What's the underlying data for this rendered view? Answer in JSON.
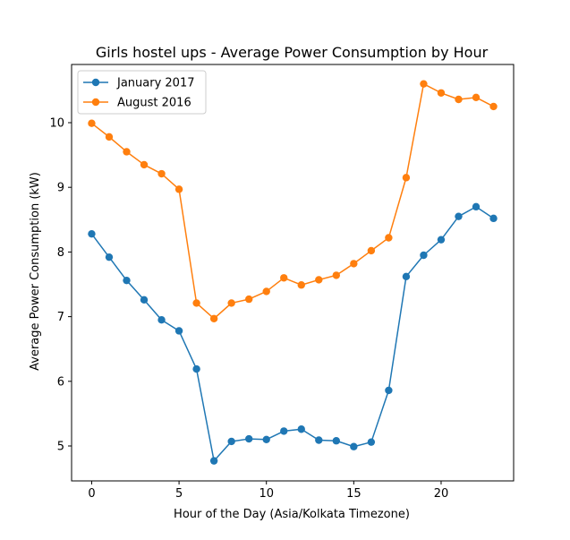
{
  "chart_data": {
    "type": "line",
    "title": "Girls hostel ups - Average Power Consumption by Hour",
    "xlabel": "Hour of the Day (Asia/Kolkata Timezone)",
    "ylabel": "Average Power Consumption (kW)",
    "xlim": [
      -1.15,
      24.15
    ],
    "ylim": [
      4.46,
      10.9
    ],
    "xticks": [
      0,
      5,
      10,
      15,
      20
    ],
    "yticks": [
      5,
      6,
      7,
      8,
      9,
      10
    ],
    "grid": false,
    "legend_position": "top-left",
    "x": [
      0,
      1,
      2,
      3,
      4,
      5,
      6,
      7,
      8,
      9,
      10,
      11,
      12,
      13,
      14,
      15,
      16,
      17,
      18,
      19,
      20,
      21,
      22,
      23
    ],
    "series": [
      {
        "name": "January 2017",
        "color": "#1f77b4",
        "values": [
          8.28,
          7.92,
          7.56,
          7.26,
          6.95,
          6.78,
          6.19,
          4.77,
          5.07,
          5.11,
          5.1,
          5.23,
          5.26,
          5.09,
          5.08,
          4.99,
          5.06,
          5.86,
          7.62,
          7.95,
          8.19,
          8.55,
          8.7,
          8.52
        ]
      },
      {
        "name": "August 2016",
        "color": "#ff7f0e",
        "values": [
          9.99,
          9.78,
          9.55,
          9.35,
          9.21,
          8.97,
          7.21,
          6.97,
          7.21,
          7.27,
          7.39,
          7.6,
          7.49,
          7.57,
          7.64,
          7.82,
          8.02,
          8.22,
          9.15,
          10.6,
          10.46,
          10.36,
          10.39,
          10.25
        ]
      }
    ]
  }
}
